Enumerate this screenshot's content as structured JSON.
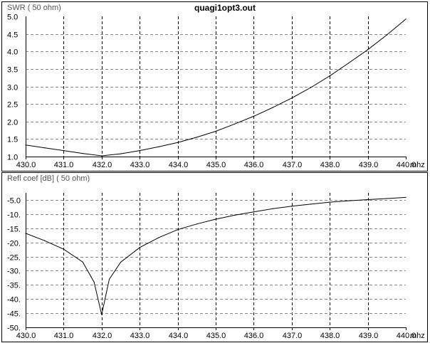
{
  "title": "quagi1opt3.out",
  "chart_data": [
    {
      "type": "line",
      "ylabel": "SWR ( 50 ohm)",
      "xlabel": "mhz",
      "xlim": [
        430.0,
        440.0
      ],
      "ylim": [
        1.0,
        5.0
      ],
      "grid": true,
      "x_ticks": [
        "430.0",
        "431.0",
        "432.0",
        "433.0",
        "434.0",
        "435.0",
        "436.0",
        "437.0",
        "438.0",
        "439.0",
        "440.0"
      ],
      "y_ticks": [
        "5.0",
        "4.5",
        "4.0",
        "3.5",
        "3.0",
        "2.5",
        "2.0",
        "1.5",
        "1.0"
      ],
      "series": [
        {
          "x": [
            430.0,
            430.5,
            431.0,
            431.5,
            432.0,
            432.5,
            433.0,
            433.5,
            434.0,
            434.5,
            435.0,
            435.5,
            436.0,
            436.5,
            437.0,
            437.5,
            438.0,
            438.5,
            439.0,
            439.5,
            440.0
          ],
          "y": [
            1.33,
            1.25,
            1.17,
            1.09,
            1.02,
            1.08,
            1.17,
            1.28,
            1.4,
            1.55,
            1.72,
            1.93,
            2.15,
            2.4,
            2.67,
            2.97,
            3.3,
            3.67,
            4.05,
            4.47,
            4.92
          ]
        }
      ]
    },
    {
      "type": "line",
      "ylabel": "Refl coef [dB] ( 50 ohm)",
      "xlabel": "mhz",
      "xlim": [
        430.0,
        440.0
      ],
      "ylim": [
        -50,
        -2.5
      ],
      "grid": true,
      "x_ticks": [
        "430.0",
        "431.0",
        "432.0",
        "433.0",
        "434.0",
        "435.0",
        "436.0",
        "437.0",
        "438.0",
        "439.0",
        "440.0"
      ],
      "y_ticks": [
        "-5.0",
        "-10.",
        "-15.",
        "-20.",
        "-25.",
        "-30.",
        "-35.",
        "-40.",
        "-45.",
        "-50."
      ],
      "series": [
        {
          "x": [
            430.0,
            430.5,
            431.0,
            431.5,
            431.8,
            432.0,
            432.2,
            432.5,
            433.0,
            433.5,
            434.0,
            434.5,
            435.0,
            435.5,
            436.0,
            436.5,
            437.0,
            437.5,
            438.0,
            438.5,
            439.0,
            439.5,
            440.0
          ],
          "y": [
            -16.8,
            -19.4,
            -22.4,
            -26.9,
            -34.0,
            -45.5,
            -33.0,
            -27.0,
            -21.8,
            -18.3,
            -15.5,
            -13.5,
            -11.8,
            -10.4,
            -9.2,
            -8.1,
            -7.2,
            -6.5,
            -5.8,
            -5.3,
            -4.9,
            -4.5,
            -4.1
          ]
        }
      ]
    }
  ]
}
